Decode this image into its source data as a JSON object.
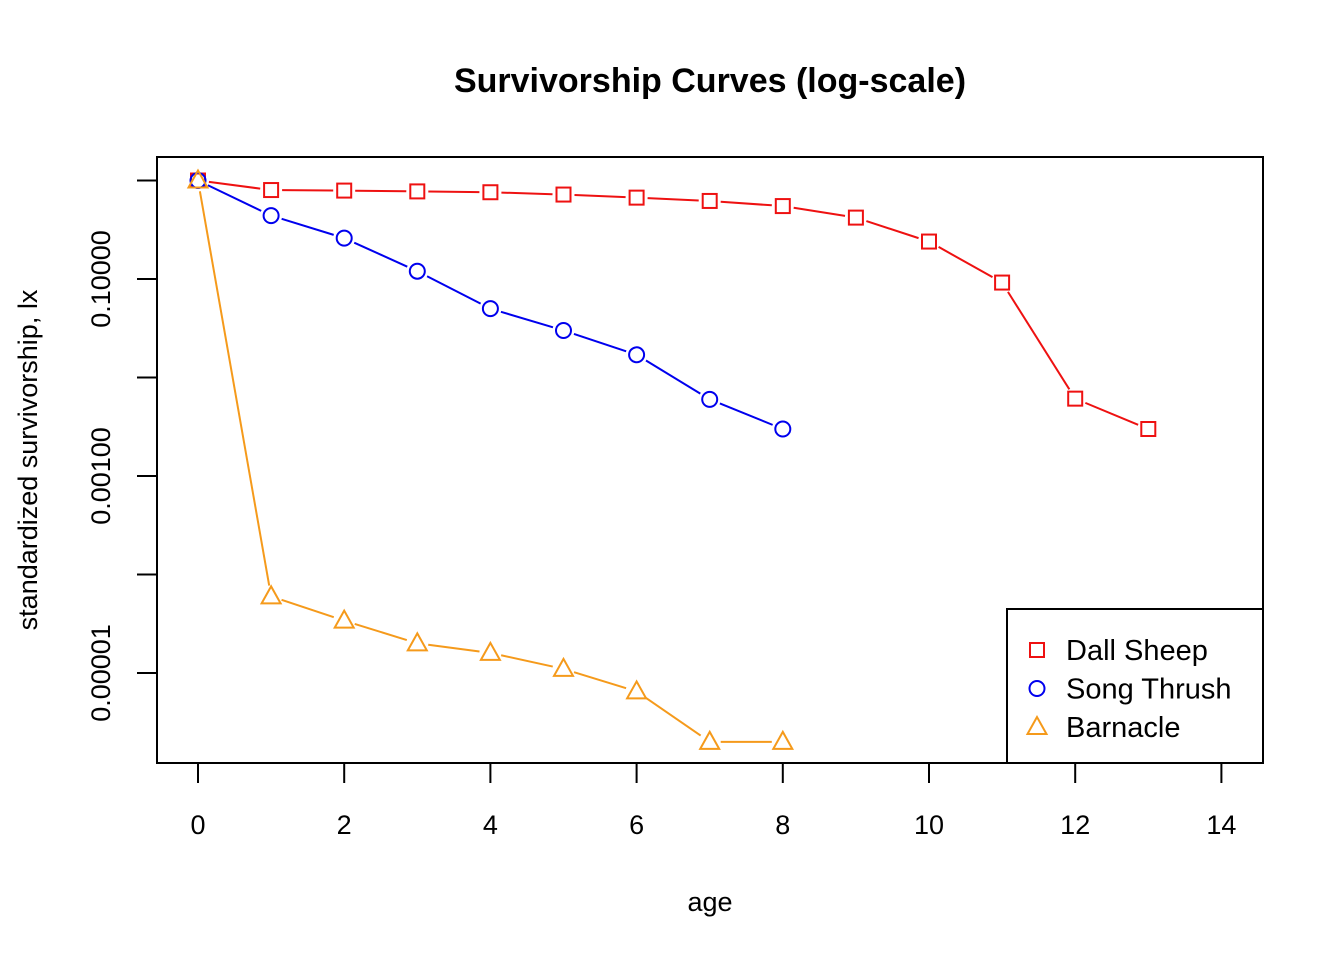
{
  "chart_data": {
    "type": "line",
    "title": "Survivorship Curves (log-scale)",
    "xlabel": "age",
    "ylabel": "standardized survivorship, lx",
    "x_scale": "linear",
    "y_scale": "log",
    "xlim": [
      -0.5,
      14.5
    ],
    "ylim": [
      2e-06,
      1.1
    ],
    "x_ticks": [
      0,
      2,
      4,
      6,
      8,
      10,
      12,
      14
    ],
    "x_tick_labels": [
      "0",
      "2",
      "4",
      "6",
      "8",
      "10",
      "12",
      "14"
    ],
    "y_ticks": [
      1e-05,
      0.0001,
      0.001,
      0.01,
      0.1,
      1
    ],
    "y_tick_labels": [
      "0.00001",
      "",
      "0.00100",
      "",
      "0.10000",
      ""
    ],
    "legend_position": "bottom-right",
    "grid": false,
    "series": [
      {
        "name": "Dall Sheep",
        "color": "#ee1111",
        "marker": "square",
        "x": [
          0,
          1,
          2,
          3,
          4,
          5,
          6,
          7,
          8,
          9,
          10,
          11,
          12,
          13
        ],
        "values": [
          1.0,
          0.8,
          0.79,
          0.775,
          0.76,
          0.72,
          0.67,
          0.62,
          0.55,
          0.42,
          0.24,
          0.092,
          0.0061,
          0.003
        ]
      },
      {
        "name": "Song Thrush",
        "color": "#0000ee",
        "marker": "circle",
        "x": [
          0,
          1,
          2,
          3,
          4,
          5,
          6,
          7,
          8
        ],
        "values": [
          1.0,
          0.44,
          0.26,
          0.12,
          0.05,
          0.03,
          0.017,
          0.006,
          0.003
        ]
      },
      {
        "name": "Barnacle",
        "color": "#f59a1b",
        "marker": "triangle",
        "x": [
          0,
          1,
          2,
          3,
          4,
          5,
          6,
          7,
          8
        ],
        "values": [
          1.0,
          6e-05,
          3.4e-05,
          2e-05,
          1.6e-05,
          1.1e-05,
          6.5e-06,
          2e-06,
          2e-06
        ]
      }
    ]
  }
}
